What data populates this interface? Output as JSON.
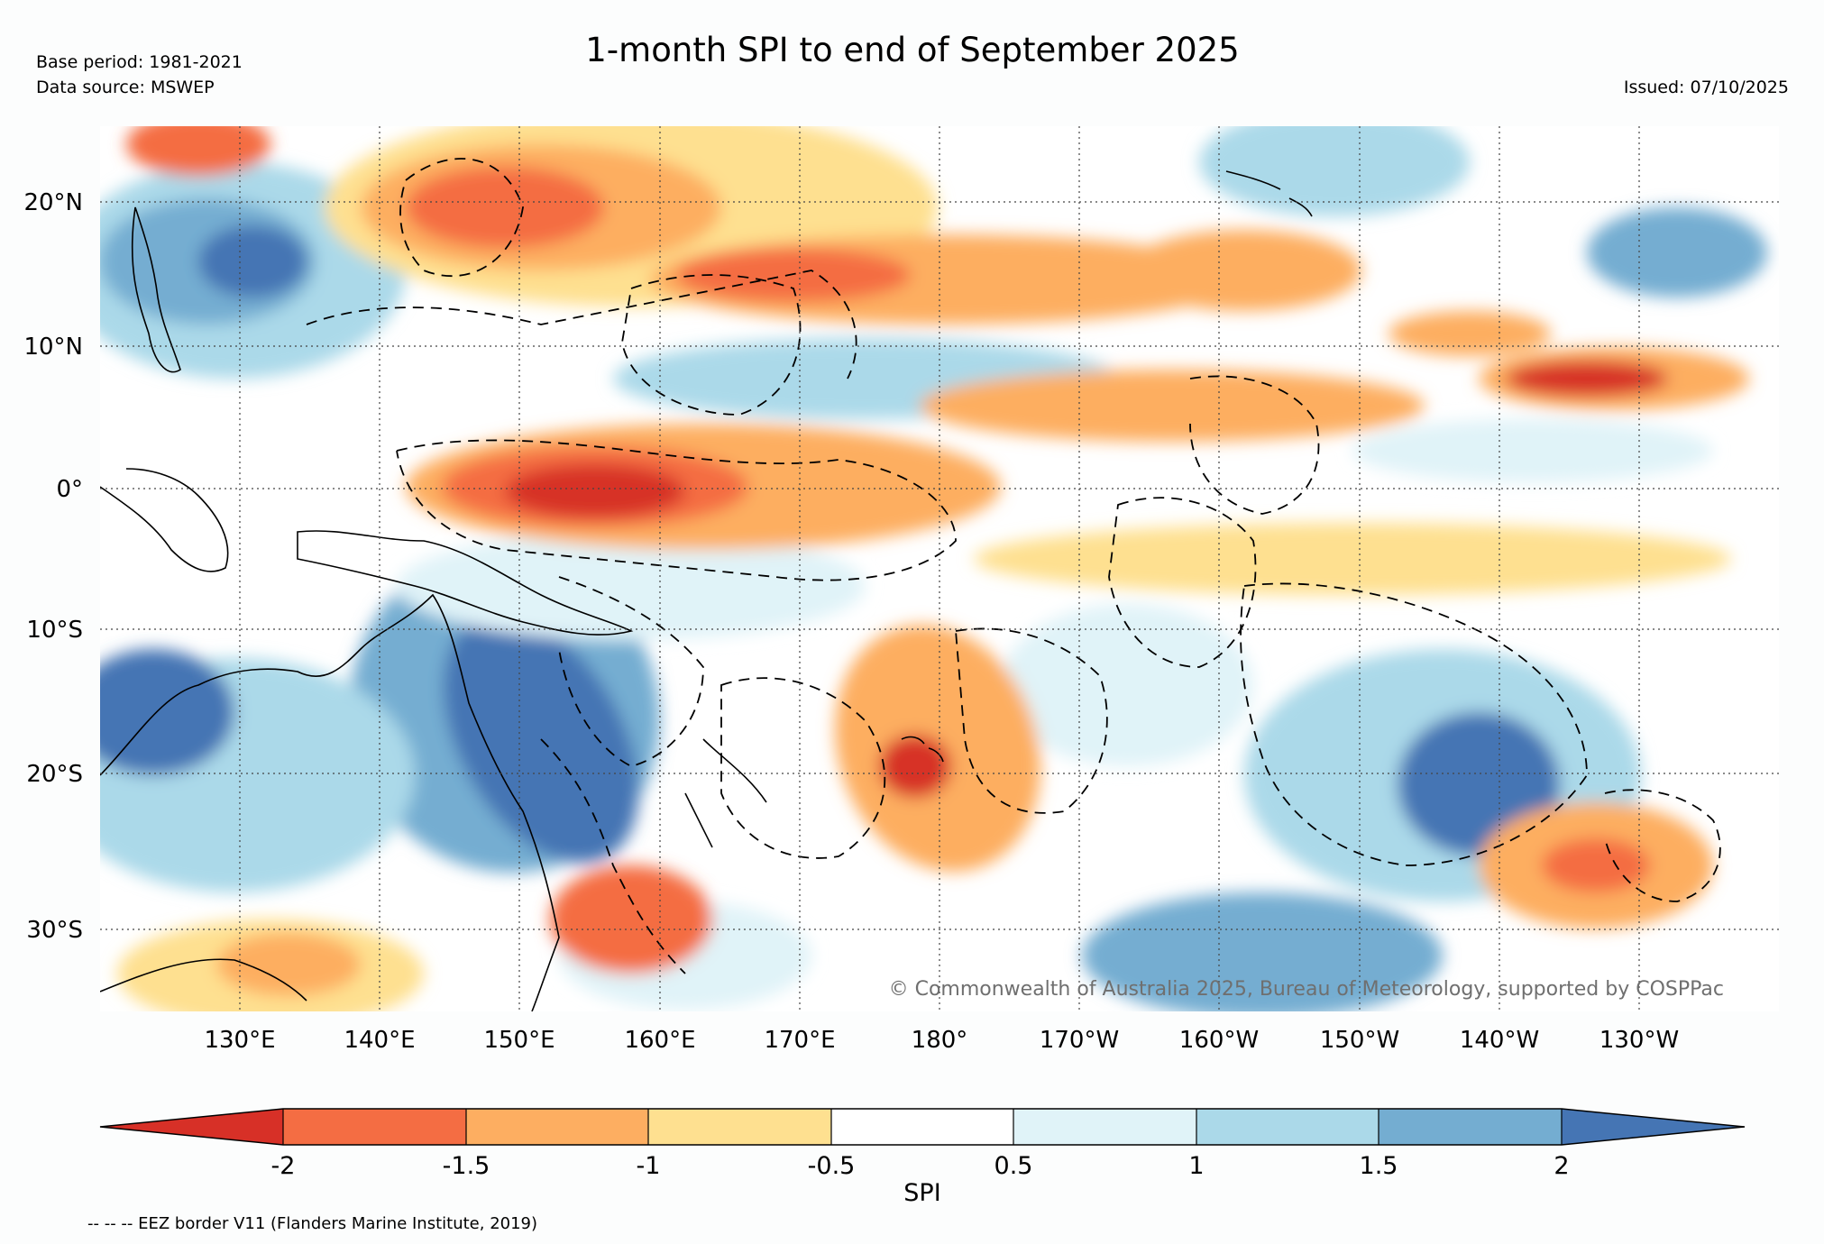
{
  "header": {
    "title": "1-month SPI to end of September 2025",
    "base_period": "Base period: 1981-2021",
    "data_source": "Data source: MSWEP",
    "issued": "Issued: 07/10/2025"
  },
  "map": {
    "lon_labels": [
      "130°E",
      "140°E",
      "150°E",
      "160°E",
      "170°E",
      "180°",
      "170°W",
      "160°W",
      "150°W",
      "140°W",
      "130°W"
    ],
    "lat_labels": [
      "20°N",
      "10°N",
      "0°",
      "10°S",
      "20°S",
      "30°S"
    ],
    "copyright": "© Commonwealth of Australia 2025, Bureau of Meteorology, supported by COSPPac"
  },
  "colorbar": {
    "label": "SPI",
    "ticks": [
      "-2",
      "-1.5",
      "-1",
      "-0.5",
      "0.5",
      "1",
      "1.5",
      "2"
    ],
    "colors": {
      "lt_m2": "#d73027",
      "m2_m15": "#f46d43",
      "m15_m1": "#fdae61",
      "m1_m05": "#fee090",
      "m05_05": "#ffffff",
      "p05_1": "#e0f3f8",
      "p1_15": "#abd9e9",
      "p15_2": "#74add1",
      "gt_2": "#4575b4"
    }
  },
  "footer": {
    "eez_note": "-- -- -- EEZ border V11 (Flanders Marine Institute, 2019)"
  }
}
